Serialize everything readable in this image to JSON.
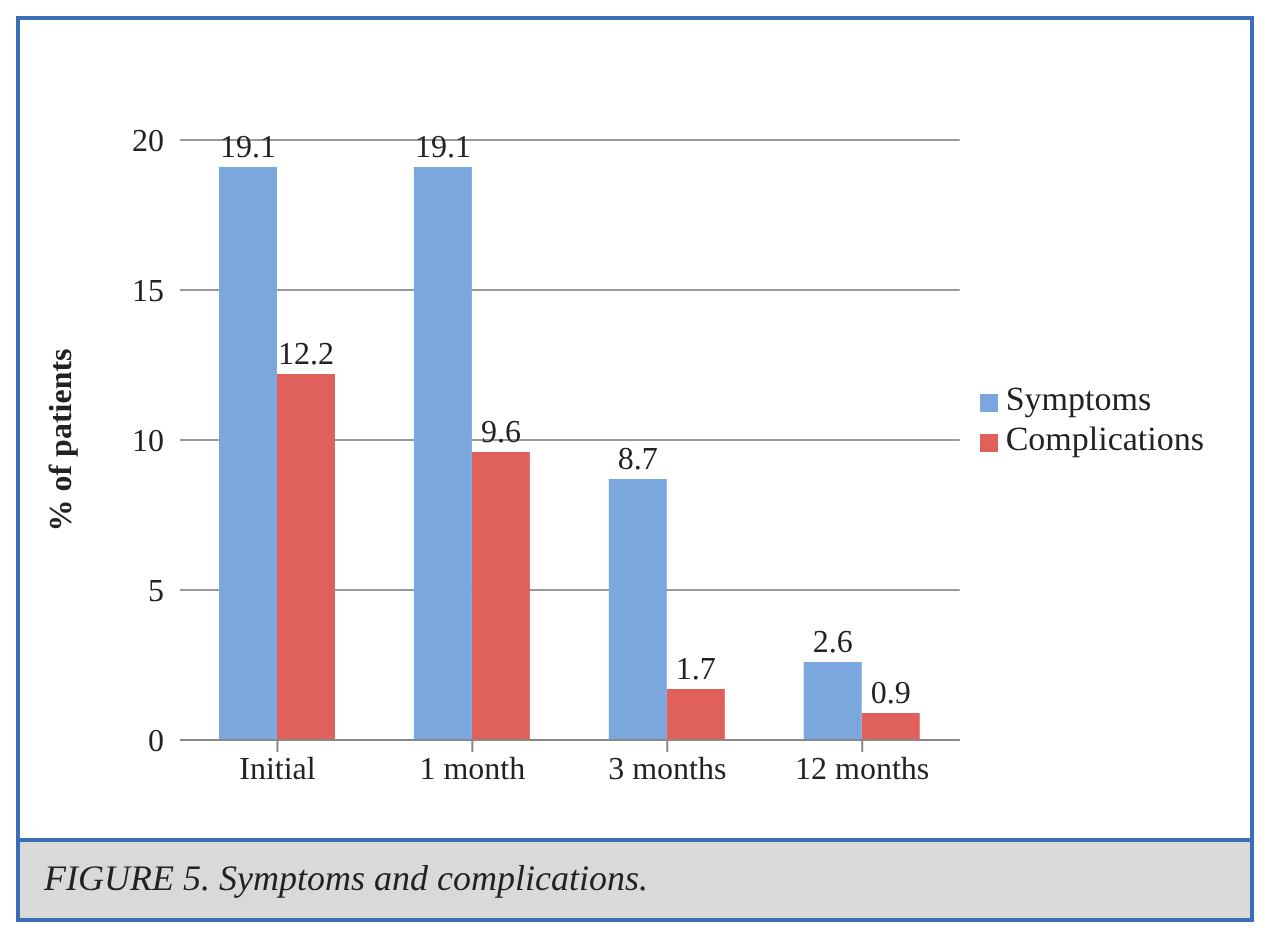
{
  "chart_data": {
    "type": "bar",
    "categories": [
      "Initial",
      "1 month",
      "3 months",
      "12 months"
    ],
    "series": [
      {
        "name": "Symptoms",
        "color": "#7aa8de",
        "values": [
          19.1,
          19.1,
          8.7,
          2.6
        ]
      },
      {
        "name": "Complications",
        "color": "#e0605c",
        "values": [
          12.2,
          9.6,
          1.7,
          0.9
        ]
      }
    ],
    "ylabel": "% of patients",
    "ylim": [
      0,
      20
    ],
    "yticks": [
      0,
      5,
      10,
      15,
      20
    ],
    "grid": "y",
    "legend": "right",
    "data_labels": true,
    "annotations": [
      "FIGURE 5. Symptoms and complications."
    ]
  }
}
